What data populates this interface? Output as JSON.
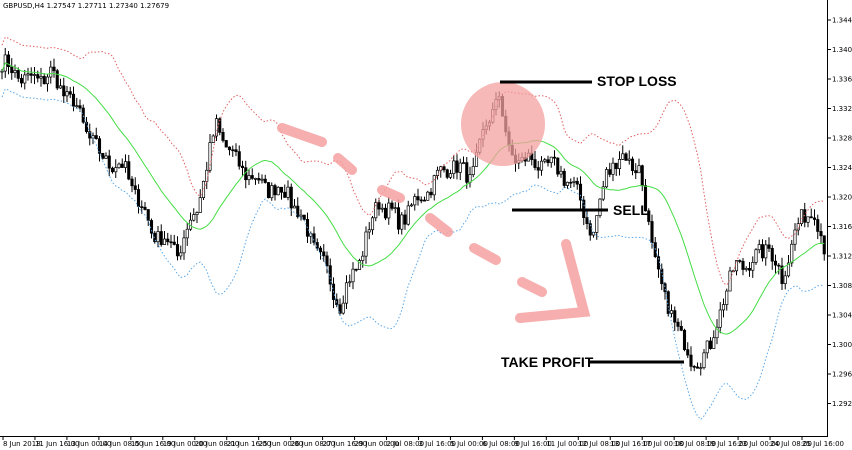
{
  "symbol_info": {
    "symbol": "GBPUSD,H4",
    "ohlc": "1.27547 1.27711 1.27340 1.27679"
  },
  "annotations": {
    "stop_loss": "STOP LOSS",
    "sell": "SELL",
    "take_profit": "TAKE PROFIT"
  },
  "colors": {
    "upper_band": "#e06060",
    "middle_band": "#44dd44",
    "lower_band": "#5aa8e8",
    "candles": "#000000",
    "highlight_circle": "#f4a0a0",
    "arrow": "#f4a0a0"
  },
  "chart_data": {
    "type": "candlestick",
    "indicator": "Bollinger Bands",
    "y_axis_ticks": [
      "1.34430",
      "1.34035",
      "1.33625",
      "1.33235",
      "1.32840",
      "1.32440",
      "1.32040",
      "1.31645",
      "1.31245",
      "1.30850",
      "1.30450",
      "1.30050",
      "1.29655",
      "1.29250"
    ],
    "x_axis_ticks": [
      "8 Jun 2018",
      "11 Jun 16:00",
      "13 Jun 00:00",
      "14 Jun 08:00",
      "15 Jun 16:00",
      "19 Jun 00:00",
      "20 Jun 08:00",
      "21 Jun 16:00",
      "25 Jun 00:00",
      "26 Jun 08:00",
      "27 Jun 16:00",
      "29 Jun 00:00",
      "2 Jul 08:00",
      "3 Jul 16:00",
      "5 Jul 00:00",
      "6 Jul 08:00",
      "9 Jul 16:00",
      "11 Jul 00:00",
      "12 Jul 08:00",
      "13 Jul 16:00",
      "17 Jul 00:00",
      "18 Jul 08:00",
      "19 Jul 16:00",
      "23 Jul 00:00",
      "24 Jul 08:00",
      "25 Jul 16:00"
    ],
    "price_anchors": [
      [
        0,
        1.3385
      ],
      [
        8,
        1.336
      ],
      [
        15,
        1.337
      ],
      [
        22,
        1.333
      ],
      [
        30,
        1.326
      ],
      [
        38,
        1.324
      ],
      [
        46,
        1.316
      ],
      [
        54,
        1.313
      ],
      [
        60,
        1.319
      ],
      [
        66,
        1.33
      ],
      [
        72,
        1.325
      ],
      [
        80,
        1.322
      ],
      [
        88,
        1.321
      ],
      [
        96,
        1.314
      ],
      [
        104,
        1.306
      ],
      [
        110,
        1.312
      ],
      [
        116,
        1.32
      ],
      [
        122,
        1.317
      ],
      [
        130,
        1.321
      ],
      [
        138,
        1.325
      ],
      [
        144,
        1.323
      ],
      [
        150,
        1.331
      ],
      [
        153,
        1.3345
      ],
      [
        156,
        1.326
      ],
      [
        164,
        1.325
      ],
      [
        172,
        1.324
      ],
      [
        178,
        1.32
      ],
      [
        182,
        1.315
      ],
      [
        186,
        1.324
      ],
      [
        192,
        1.326
      ],
      [
        196,
        1.324
      ],
      [
        200,
        1.314
      ],
      [
        204,
        1.306
      ],
      [
        208,
        1.303
      ],
      [
        212,
        1.298
      ],
      [
        218,
        1.3
      ],
      [
        222,
        1.307
      ],
      [
        226,
        1.311
      ],
      [
        232,
        1.312
      ],
      [
        236,
        1.314
      ],
      [
        240,
        1.309
      ],
      [
        244,
        1.316
      ],
      [
        250,
        1.319
      ],
      [
        253,
        1.313
      ]
    ],
    "x_start": "8 Jun 2018",
    "x_end": "25 Jul 16:00"
  }
}
